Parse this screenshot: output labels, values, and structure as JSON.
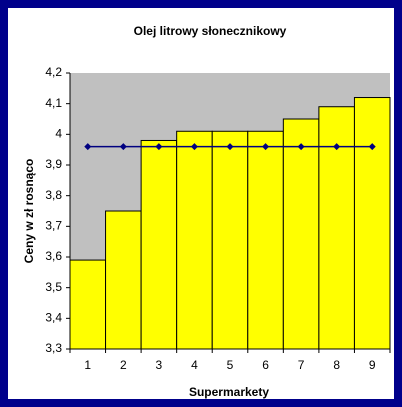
{
  "chart_data": {
    "type": "bar",
    "title": "Olej litrowy słonecznikowy",
    "xlabel": "Supermarkety",
    "ylabel": "Ceny w zł rosnąco",
    "categories": [
      "1",
      "2",
      "3",
      "4",
      "5",
      "6",
      "7",
      "8",
      "9"
    ],
    "series": [
      {
        "type": "bar",
        "color": "#ffff00",
        "values": [
          3.59,
          3.75,
          3.98,
          4.01,
          4.01,
          4.01,
          4.05,
          4.09,
          4.12
        ]
      },
      {
        "type": "line",
        "color": "#000080",
        "values": [
          3.96,
          3.96,
          3.96,
          3.96,
          3.96,
          3.96,
          3.96,
          3.96,
          3.96
        ]
      }
    ],
    "plot_background": "#c0c0c0",
    "ylim": [
      3.3,
      4.2
    ],
    "yticks": [
      {
        "value": 3.3,
        "label": "3,3"
      },
      {
        "value": 3.4,
        "label": "3,4"
      },
      {
        "value": 3.5,
        "label": "3,5"
      },
      {
        "value": 3.6,
        "label": "3,6"
      },
      {
        "value": 3.7,
        "label": "3,7"
      },
      {
        "value": 3.8,
        "label": "3,8"
      },
      {
        "value": 3.9,
        "label": "3,9"
      },
      4,
      {
        "value": 4.1,
        "label": "4,1"
      },
      {
        "value": 4.2,
        "label": "4,2"
      }
    ],
    "grid": false
  }
}
